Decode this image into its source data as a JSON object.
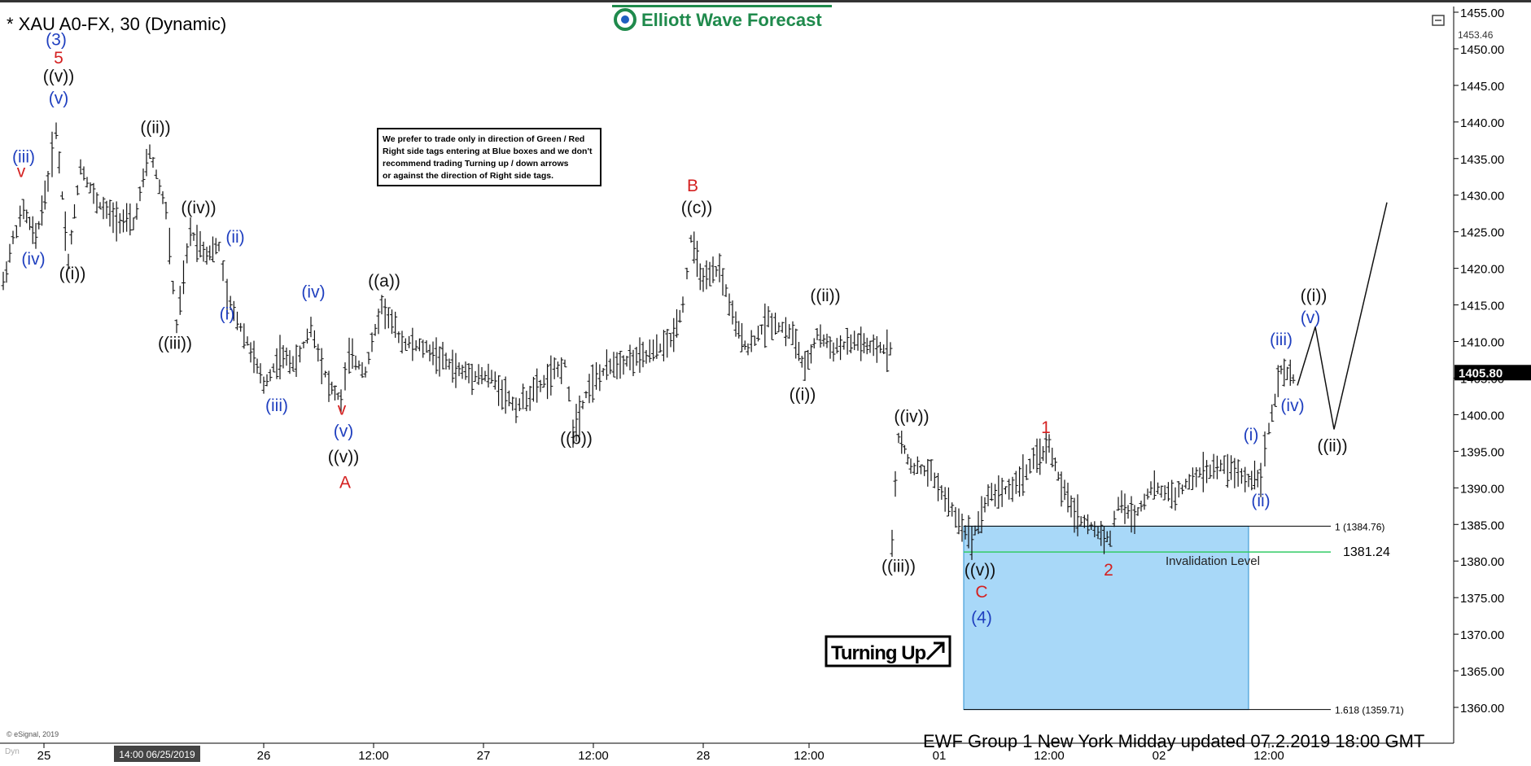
{
  "header": {
    "symbol_title": "* XAU A0-FX, 30 (Dynamic)",
    "logo_text": "Elliott Wave Forecast",
    "footer_text": "EWF Group 1 New York Midday  updated 07.2.2019 18:00 GMT",
    "copyright": "© eSignal, 2019",
    "dyn_label": "Dyn",
    "note_lines": [
      "We prefer to trade only in direction of Green / Red",
      "Right side tags entering at Blue boxes and we don't",
      "recommend trading Turning up / down arrows",
      "or against the direction of Right side tags."
    ],
    "turning_up": "Turning Up",
    "time_tag": "14:00 06/25/2019",
    "invalidation_label": "Invalidation Level"
  },
  "chart_data": {
    "type": "bar",
    "description_units": "XAU price (USD)",
    "ylim": [
      1356.5,
      1455.5
    ],
    "y_ticks": [
      1360,
      1365,
      1370,
      1375,
      1380,
      1385,
      1390,
      1395,
      1400,
      1405,
      1410,
      1415,
      1420,
      1425,
      1430,
      1435,
      1440,
      1445,
      1450,
      1455
    ],
    "y_tick_labels": [
      "1360.00",
      "1365.00",
      "1370.00",
      "1375.00",
      "1380.00",
      "1385.00",
      "1390.00",
      "1395.00",
      "1400.00",
      "1405.00",
      "1410.00",
      "1415.00",
      "1420.00",
      "1425.00",
      "1430.00",
      "1435.00",
      "1440.00",
      "1445.00",
      "1450.00",
      "1455.00"
    ],
    "x_ticks": [
      {
        "label": "25",
        "t": 0.05
      },
      {
        "label": "26",
        "t": 0.32
      },
      {
        "label": "12:00",
        "t": 0.455
      },
      {
        "label": "27",
        "t": 0.59
      },
      {
        "label": "12:00",
        "t": 0.725
      },
      {
        "label": "28",
        "t": 0.86
      },
      {
        "label": "12:00",
        "t": 0.99
      },
      {
        "label": "01",
        "t": 1.15
      },
      {
        "label": "12:00",
        "t": 1.285
      },
      {
        "label": "02",
        "t": 1.42
      },
      {
        "label": "12:00",
        "t": 1.555
      }
    ],
    "x_range_t": [
      0.0,
      1.77
    ],
    "last_price": "1405.80",
    "high_marker": "1453.46",
    "levels": [
      {
        "label": "1 (1384.76)",
        "value": 1384.76,
        "color": "#000000"
      },
      {
        "label": "1381.24",
        "value": 1381.24,
        "color": "#33cc66"
      },
      {
        "label": "1.618 (1359.71)",
        "value": 1359.71,
        "color": "#000000"
      }
    ],
    "blue_box": {
      "t_start": 1.18,
      "t_end": 1.53,
      "top": 1384.76,
      "bottom": 1359.71,
      "color": "#a8d8f8"
    },
    "price_path": [
      [
        0.0,
        1418
      ],
      [
        0.012,
        1424
      ],
      [
        0.025,
        1428
      ],
      [
        0.04,
        1424
      ],
      [
        0.055,
        1432
      ],
      [
        0.065,
        1439
      ],
      [
        0.08,
        1421
      ],
      [
        0.095,
        1434
      ],
      [
        0.115,
        1429
      ],
      [
        0.135,
        1427
      ],
      [
        0.16,
        1426
      ],
      [
        0.18,
        1436
      ],
      [
        0.2,
        1428
      ],
      [
        0.213,
        1412
      ],
      [
        0.23,
        1425
      ],
      [
        0.25,
        1422
      ],
      [
        0.265,
        1423
      ],
      [
        0.275,
        1416
      ],
      [
        0.3,
        1410
      ],
      [
        0.32,
        1404
      ],
      [
        0.34,
        1408
      ],
      [
        0.36,
        1407
      ],
      [
        0.378,
        1412
      ],
      [
        0.4,
        1404
      ],
      [
        0.415,
        1402
      ],
      [
        0.425,
        1408
      ],
      [
        0.445,
        1406
      ],
      [
        0.465,
        1415
      ],
      [
        0.49,
        1410
      ],
      [
        0.52,
        1409
      ],
      [
        0.56,
        1406
      ],
      [
        0.6,
        1405
      ],
      [
        0.63,
        1401
      ],
      [
        0.66,
        1404
      ],
      [
        0.69,
        1407
      ],
      [
        0.7,
        1398
      ],
      [
        0.72,
        1404
      ],
      [
        0.75,
        1407
      ],
      [
        0.79,
        1408
      ],
      [
        0.82,
        1410
      ],
      [
        0.835,
        1415
      ],
      [
        0.845,
        1424
      ],
      [
        0.86,
        1418
      ],
      [
        0.88,
        1420
      ],
      [
        0.9,
        1412
      ],
      [
        0.915,
        1409
      ],
      [
        0.94,
        1413
      ],
      [
        0.97,
        1411
      ],
      [
        0.985,
        1406
      ],
      [
        1.0,
        1411
      ],
      [
        1.02,
        1409
      ],
      [
        1.05,
        1410
      ],
      [
        1.065,
        1409
      ],
      [
        1.09,
        1409
      ],
      [
        1.092,
        1383
      ],
      [
        1.1,
        1397
      ],
      [
        1.115,
        1393
      ],
      [
        1.14,
        1392
      ],
      [
        1.17,
        1386
      ],
      [
        1.19,
        1383
      ],
      [
        1.21,
        1389
      ],
      [
        1.24,
        1390
      ],
      [
        1.27,
        1394
      ],
      [
        1.285,
        1396
      ],
      [
        1.3,
        1390
      ],
      [
        1.32,
        1386
      ],
      [
        1.345,
        1384
      ],
      [
        1.36,
        1383
      ],
      [
        1.37,
        1388
      ],
      [
        1.39,
        1386
      ],
      [
        1.41,
        1390
      ],
      [
        1.44,
        1389
      ],
      [
        1.47,
        1392
      ],
      [
        1.5,
        1393
      ],
      [
        1.53,
        1391
      ],
      [
        1.545,
        1392
      ],
      [
        1.555,
        1398
      ],
      [
        1.57,
        1406
      ],
      [
        1.585,
        1405
      ],
      [
        1.59,
        1406
      ]
    ],
    "projection": [
      [
        1.59,
        1404
      ],
      [
        1.612,
        1412
      ],
      [
        1.635,
        1398
      ],
      [
        1.7,
        1429
      ]
    ],
    "wave_labels": [
      {
        "text": "(3)",
        "t": 0.065,
        "v": 1450.5,
        "color": "#1f3fbf"
      },
      {
        "text": "5",
        "t": 0.068,
        "v": 1448.0,
        "color": "#d42020"
      },
      {
        "text": "((v))",
        "t": 0.068,
        "v": 1445.5,
        "color": "#111111"
      },
      {
        "text": "(v)",
        "t": 0.068,
        "v": 1442.5,
        "color": "#1f3fbf"
      },
      {
        "text": "(iii)",
        "t": 0.025,
        "v": 1434.5,
        "color": "#1f3fbf"
      },
      {
        "text": "v",
        "t": 0.022,
        "v": 1432.5,
        "color": "#d42020"
      },
      {
        "text": "(iv)",
        "t": 0.037,
        "v": 1420.5,
        "color": "#1f3fbf"
      },
      {
        "text": "((i))",
        "t": 0.085,
        "v": 1418.5,
        "color": "#111111"
      },
      {
        "text": "((ii))",
        "t": 0.187,
        "v": 1438.5,
        "color": "#111111"
      },
      {
        "text": "((iv))",
        "t": 0.24,
        "v": 1427.5,
        "color": "#111111"
      },
      {
        "text": "(ii)",
        "t": 0.285,
        "v": 1423.5,
        "color": "#1f3fbf"
      },
      {
        "text": "(i)",
        "t": 0.275,
        "v": 1413.0,
        "color": "#1f3fbf"
      },
      {
        "text": "((iii))",
        "t": 0.211,
        "v": 1409.0,
        "color": "#111111"
      },
      {
        "text": "(iv)",
        "t": 0.381,
        "v": 1416.0,
        "color": "#1f3fbf"
      },
      {
        "text": "(iii)",
        "t": 0.336,
        "v": 1400.5,
        "color": "#1f3fbf"
      },
      {
        "text": "v",
        "t": 0.416,
        "v": 1400.0,
        "color": "#d42020"
      },
      {
        "text": "(v)",
        "t": 0.418,
        "v": 1397.0,
        "color": "#1f3fbf"
      },
      {
        "text": "((v))",
        "t": 0.418,
        "v": 1393.5,
        "color": "#111111"
      },
      {
        "text": "A",
        "t": 0.42,
        "v": 1390.0,
        "color": "#d42020"
      },
      {
        "text": "((a))",
        "t": 0.468,
        "v": 1417.5,
        "color": "#111111"
      },
      {
        "text": "((b))",
        "t": 0.704,
        "v": 1396.0,
        "color": "#111111"
      },
      {
        "text": "B",
        "t": 0.847,
        "v": 1430.5,
        "color": "#d42020"
      },
      {
        "text": "((c))",
        "t": 0.852,
        "v": 1427.5,
        "color": "#111111"
      },
      {
        "text": "((ii))",
        "t": 1.01,
        "v": 1415.5,
        "color": "#111111"
      },
      {
        "text": "((i))",
        "t": 0.982,
        "v": 1402.0,
        "color": "#111111"
      },
      {
        "text": "((iv))",
        "t": 1.116,
        "v": 1399.0,
        "color": "#111111"
      },
      {
        "text": "((iii))",
        "t": 1.1,
        "v": 1378.5,
        "color": "#111111"
      },
      {
        "text": "((v))",
        "t": 1.2,
        "v": 1378.0,
        "color": "#111111"
      },
      {
        "text": "C",
        "t": 1.202,
        "v": 1375.0,
        "color": "#d42020"
      },
      {
        "text": "(4)",
        "t": 1.202,
        "v": 1371.5,
        "color": "#1f3fbf"
      },
      {
        "text": "1",
        "t": 1.281,
        "v": 1397.5,
        "color": "#d42020"
      },
      {
        "text": "2",
        "t": 1.358,
        "v": 1378.0,
        "color": "#d42020"
      },
      {
        "text": "(i)",
        "t": 1.533,
        "v": 1396.5,
        "color": "#1f3fbf"
      },
      {
        "text": "(ii)",
        "t": 1.545,
        "v": 1387.5,
        "color": "#1f3fbf"
      },
      {
        "text": "(iii)",
        "t": 1.57,
        "v": 1409.5,
        "color": "#1f3fbf"
      },
      {
        "text": "(iv)",
        "t": 1.584,
        "v": 1400.5,
        "color": "#1f3fbf"
      },
      {
        "text": "((i))",
        "t": 1.61,
        "v": 1415.5,
        "color": "#111111"
      },
      {
        "text": "(v)",
        "t": 1.606,
        "v": 1412.5,
        "color": "#1f3fbf"
      },
      {
        "text": "((ii))",
        "t": 1.633,
        "v": 1395.0,
        "color": "#111111"
      }
    ]
  },
  "colors": {
    "axis_panel": "#ffffff",
    "bars": "#111111",
    "tag_bg": "#000000",
    "tag_text": "#ffffff",
    "logo_green": "#1f8a4c",
    "logo_blue": "#1f5fbf"
  }
}
